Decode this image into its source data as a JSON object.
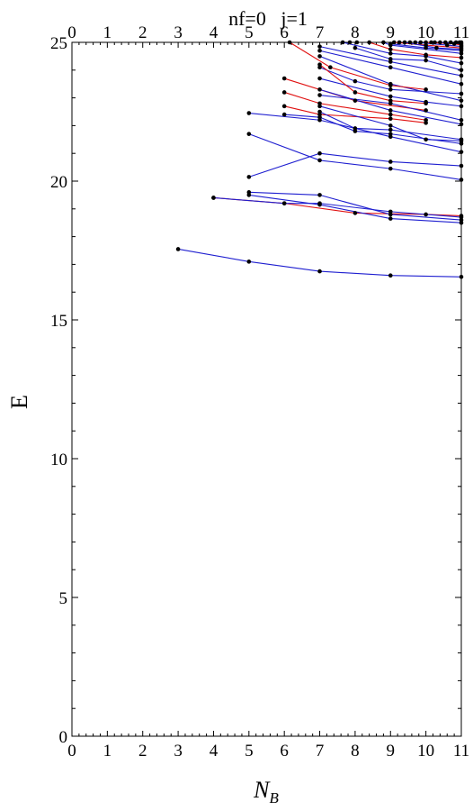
{
  "chart_data": {
    "type": "line",
    "title": "nf=0   j=1",
    "xlabel": "N",
    "xlabel_sub": "B",
    "ylabel": "E",
    "xlim": [
      0,
      11
    ],
    "ylim": [
      0,
      25
    ],
    "x_ticks": [
      "0",
      "1",
      "2",
      "3",
      "4",
      "5",
      "6",
      "7",
      "8",
      "9",
      "10",
      "11"
    ],
    "y_ticks": [
      "0",
      "5",
      "10",
      "15",
      "20",
      "25"
    ],
    "grid": false,
    "colors": {
      "blue": "#1f1fd0",
      "red": "#e01010",
      "point": "#000000"
    },
    "series": [
      {
        "color": "blue",
        "points": [
          [
            3,
            17.55
          ],
          [
            5,
            17.1
          ],
          [
            7,
            16.75
          ],
          [
            9,
            16.6
          ],
          [
            11,
            16.55
          ]
        ]
      },
      {
        "color": "red",
        "points": [
          [
            4,
            19.4
          ],
          [
            6,
            19.2
          ],
          [
            8,
            18.85
          ],
          [
            10,
            18.8
          ],
          [
            11,
            18.75
          ]
        ]
      },
      {
        "color": "blue",
        "points": [
          [
            4,
            19.4
          ],
          [
            6,
            19.2
          ],
          [
            7,
            19.2
          ],
          [
            9,
            18.9
          ],
          [
            11,
            18.7
          ]
        ]
      },
      {
        "color": "blue",
        "points": [
          [
            5,
            19.5
          ],
          [
            7,
            19.15
          ],
          [
            9,
            18.65
          ],
          [
            11,
            18.5
          ]
        ]
      },
      {
        "color": "blue",
        "points": [
          [
            5,
            19.6
          ],
          [
            7,
            19.5
          ],
          [
            9,
            18.8
          ],
          [
            11,
            18.6
          ]
        ]
      },
      {
        "color": "blue",
        "points": [
          [
            5,
            20.15
          ],
          [
            7,
            21.0
          ],
          [
            9,
            20.7
          ],
          [
            11,
            20.55
          ]
        ]
      },
      {
        "color": "blue",
        "points": [
          [
            5,
            21.7
          ],
          [
            7,
            20.75
          ],
          [
            9,
            20.45
          ],
          [
            11,
            20.05
          ]
        ]
      },
      {
        "color": "blue",
        "points": [
          [
            5,
            22.45
          ],
          [
            7,
            22.2
          ],
          [
            9,
            21.6
          ],
          [
            11,
            21.05
          ]
        ]
      },
      {
        "color": "blue",
        "points": [
          [
            6,
            22.4
          ],
          [
            7,
            22.3
          ],
          [
            8,
            21.8
          ],
          [
            9,
            21.7
          ],
          [
            11,
            21.35
          ]
        ]
      },
      {
        "color": "red",
        "points": [
          [
            6,
            22.7
          ],
          [
            7,
            22.4
          ],
          [
            9,
            22.25
          ],
          [
            10,
            22.1
          ]
        ]
      },
      {
        "color": "blue",
        "points": [
          [
            7,
            22.5
          ],
          [
            8,
            21.9
          ],
          [
            9,
            21.85
          ],
          [
            11,
            21.5
          ]
        ]
      },
      {
        "color": "red",
        "points": [
          [
            6,
            23.2
          ],
          [
            7,
            22.8
          ],
          [
            9,
            22.4
          ],
          [
            10,
            22.2
          ]
        ]
      },
      {
        "color": "blue",
        "points": [
          [
            7,
            22.7
          ],
          [
            9,
            22.0
          ],
          [
            10,
            21.5
          ],
          [
            11,
            21.45
          ]
        ]
      },
      {
        "color": "red",
        "points": [
          [
            6,
            23.7
          ],
          [
            8,
            22.9
          ],
          [
            10,
            22.55
          ]
        ]
      },
      {
        "color": "blue",
        "points": [
          [
            7,
            23.3
          ],
          [
            9,
            22.55
          ],
          [
            11,
            22.05
          ]
        ]
      },
      {
        "color": "blue",
        "points": [
          [
            7,
            23.1
          ],
          [
            9,
            22.8
          ],
          [
            11,
            22.2
          ]
        ]
      },
      {
        "color": "blue",
        "points": [
          [
            7,
            23.7
          ],
          [
            9,
            23.05
          ],
          [
            10,
            22.85
          ],
          [
            11,
            22.7
          ]
        ]
      },
      {
        "color": "blue",
        "points": [
          [
            7,
            24.1
          ],
          [
            8,
            23.6
          ],
          [
            9,
            23.3
          ],
          [
            11,
            23.15
          ]
        ]
      },
      {
        "color": "red",
        "points": [
          [
            7,
            24.2
          ],
          [
            8,
            23.2
          ],
          [
            9,
            22.9
          ],
          [
            10,
            22.8
          ]
        ]
      },
      {
        "color": "blue",
        "points": [
          [
            7,
            24.5
          ],
          [
            9,
            23.5
          ],
          [
            11,
            22.9
          ]
        ]
      },
      {
        "color": "blue",
        "points": [
          [
            7,
            24.7
          ],
          [
            9,
            24.1
          ],
          [
            11,
            23.5
          ]
        ]
      },
      {
        "color": "blue",
        "points": [
          [
            7,
            24.85
          ],
          [
            9,
            24.3
          ],
          [
            11,
            23.8
          ]
        ]
      },
      {
        "color": "red",
        "points": [
          [
            6.15,
            25.0
          ],
          [
            7.3,
            24.1
          ],
          [
            9,
            23.45
          ],
          [
            10,
            23.3
          ]
        ]
      },
      {
        "color": "blue",
        "points": [
          [
            8,
            24.8
          ],
          [
            9,
            24.4
          ],
          [
            10,
            24.35
          ],
          [
            11,
            24.0
          ]
        ]
      },
      {
        "color": "blue",
        "points": [
          [
            7.65,
            25.0
          ],
          [
            9,
            24.6
          ],
          [
            10,
            24.5
          ],
          [
            11,
            24.25
          ]
        ]
      },
      {
        "color": "red",
        "points": [
          [
            8.4,
            25.0
          ],
          [
            9,
            24.75
          ],
          [
            10,
            24.55
          ],
          [
            11,
            24.45
          ]
        ]
      },
      {
        "color": "blue",
        "points": [
          [
            8.8,
            25.0
          ],
          [
            9,
            24.9
          ],
          [
            11,
            24.6
          ]
        ]
      },
      {
        "color": "blue",
        "points": [
          [
            9,
            24.95
          ],
          [
            10,
            24.8
          ],
          [
            11,
            24.7
          ]
        ]
      },
      {
        "color": "red",
        "points": [
          [
            9.1,
            25.0
          ],
          [
            10,
            24.9
          ],
          [
            11,
            24.8
          ]
        ]
      },
      {
        "color": "blue",
        "points": [
          [
            9.4,
            25.0
          ],
          [
            10.3,
            24.8
          ],
          [
            11,
            24.75
          ]
        ]
      },
      {
        "color": "blue",
        "points": [
          [
            9.7,
            25.0
          ],
          [
            10.6,
            24.9
          ],
          [
            11,
            24.85
          ]
        ]
      },
      {
        "color": "red",
        "points": [
          [
            10.0,
            25.0
          ],
          [
            10.8,
            24.95
          ],
          [
            11,
            24.9
          ]
        ]
      },
      {
        "color": "blue",
        "points": [
          [
            10.4,
            25.0
          ],
          [
            11,
            24.95
          ]
        ]
      },
      {
        "color": "blue",
        "points": [
          [
            10.7,
            25.0
          ],
          [
            11,
            25.0
          ]
        ]
      }
    ],
    "extra_points": [
      [
        7.85,
        25.0
      ],
      [
        8.05,
        25.0
      ],
      [
        9.25,
        25.0
      ],
      [
        9.55,
        25.0
      ],
      [
        9.85,
        25.0
      ],
      [
        10.15,
        25.0
      ],
      [
        10.25,
        25.0
      ],
      [
        10.55,
        25.0
      ],
      [
        10.85,
        25.0
      ],
      [
        10.95,
        25.0
      ]
    ]
  }
}
